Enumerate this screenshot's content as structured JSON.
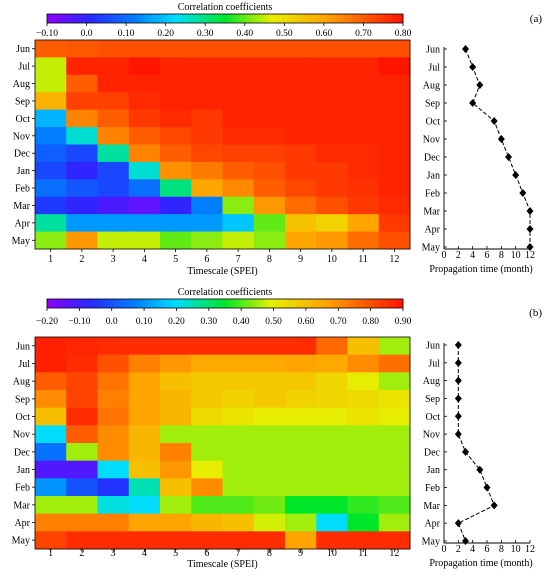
{
  "chart_data": [
    {
      "type": "heatmap",
      "panel_label": "(a)",
      "colorbar": {
        "title": "Correlation coefficients",
        "ticks": [
          "−0.10",
          "0.0",
          "0.10",
          "0.20",
          "0.30",
          "0.40",
          "0.50",
          "0.60",
          "0.70",
          "0.80"
        ],
        "min": -0.1,
        "max": 0.8
      },
      "rows": [
        "Jun",
        "Jul",
        "Aug",
        "Sep",
        "Oct",
        "Nov",
        "Dec",
        "Jan",
        "Feb",
        "Mar",
        "Apr",
        "May"
      ],
      "columns": [
        "1",
        "2",
        "3",
        "4",
        "5",
        "6",
        "7",
        "8",
        "9",
        "10",
        "11",
        "12"
      ],
      "xlabel": "Timescale (SPEI)",
      "values": [
        [
          0.7,
          0.71,
          0.72,
          0.72,
          0.72,
          0.72,
          0.72,
          0.72,
          0.72,
          0.72,
          0.72,
          0.72
        ],
        [
          0.45,
          0.78,
          0.78,
          0.8,
          0.78,
          0.78,
          0.78,
          0.78,
          0.78,
          0.78,
          0.78,
          0.8
        ],
        [
          0.45,
          0.7,
          0.78,
          0.78,
          0.78,
          0.78,
          0.78,
          0.78,
          0.78,
          0.78,
          0.78,
          0.78
        ],
        [
          0.58,
          0.74,
          0.74,
          0.77,
          0.78,
          0.78,
          0.78,
          0.78,
          0.78,
          0.78,
          0.78,
          0.78
        ],
        [
          0.18,
          0.65,
          0.7,
          0.75,
          0.77,
          0.75,
          0.78,
          0.78,
          0.78,
          0.78,
          0.78,
          0.78
        ],
        [
          0.12,
          0.25,
          0.65,
          0.7,
          0.73,
          0.75,
          0.77,
          0.77,
          0.78,
          0.78,
          0.78,
          0.78
        ],
        [
          0.08,
          0.05,
          0.28,
          0.65,
          0.7,
          0.73,
          0.74,
          0.74,
          0.75,
          0.77,
          0.77,
          0.78
        ],
        [
          0.05,
          0.0,
          0.05,
          0.25,
          0.63,
          0.66,
          0.7,
          0.72,
          0.75,
          0.75,
          0.77,
          0.78
        ],
        [
          0.1,
          0.07,
          0.05,
          0.1,
          0.3,
          0.6,
          0.64,
          0.7,
          0.73,
          0.75,
          0.76,
          0.78
        ],
        [
          0.03,
          0.0,
          -0.03,
          -0.05,
          0.0,
          0.12,
          0.42,
          0.62,
          0.68,
          0.72,
          0.75,
          0.77
        ],
        [
          0.28,
          0.15,
          0.15,
          0.15,
          0.15,
          0.15,
          0.2,
          0.4,
          0.55,
          0.52,
          0.6,
          0.75
        ],
        [
          0.42,
          0.62,
          0.45,
          0.45,
          0.4,
          0.42,
          0.45,
          0.42,
          0.6,
          0.62,
          0.68,
          0.72
        ]
      ],
      "propagation": {
        "xlabel": "Propagation time (month)",
        "xticks": [
          0,
          2,
          4,
          6,
          8,
          10,
          12
        ],
        "xlim": [
          0,
          12
        ],
        "months": [
          "Jun",
          "Jul",
          "Aug",
          "Sep",
          "Oct",
          "Nov",
          "Dec",
          "Jan",
          "Feb",
          "Mar",
          "Apr",
          "May"
        ],
        "values": [
          3,
          4,
          5,
          4,
          7,
          8,
          9,
          10,
          11,
          12,
          12,
          12
        ]
      }
    },
    {
      "type": "heatmap",
      "panel_label": "(b)",
      "colorbar": {
        "title": "Correlation coefficients",
        "ticks": [
          "−0.20",
          "−0.10",
          "0.0",
          "0.10",
          "0.20",
          "0.30",
          "0.40",
          "0.50",
          "0.60",
          "0.70",
          "0.80",
          "0.90"
        ],
        "min": -0.2,
        "max": 0.9
      },
      "rows": [
        "Jun",
        "Jul",
        "Aug",
        "Sep",
        "Oct",
        "Nov",
        "Dec",
        "Jan",
        "Feb",
        "Mar",
        "Apr",
        "May"
      ],
      "columns": [
        "1",
        "2",
        "3",
        "4",
        "5",
        "6",
        "7",
        "8",
        "9",
        "10",
        "11",
        "12"
      ],
      "xlabel": "Timescale (SPEI)",
      "values": [
        [
          0.88,
          0.87,
          0.86,
          0.86,
          0.86,
          0.86,
          0.86,
          0.86,
          0.86,
          0.76,
          0.6,
          0.45
        ],
        [
          0.88,
          0.86,
          0.8,
          0.72,
          0.68,
          0.65,
          0.65,
          0.65,
          0.66,
          0.65,
          0.7,
          0.75
        ],
        [
          0.78,
          0.82,
          0.74,
          0.66,
          0.6,
          0.58,
          0.58,
          0.58,
          0.58,
          0.55,
          0.5,
          0.45
        ],
        [
          0.7,
          0.82,
          0.72,
          0.66,
          0.62,
          0.58,
          0.56,
          0.58,
          0.56,
          0.55,
          0.54,
          0.52
        ],
        [
          0.6,
          0.86,
          0.74,
          0.66,
          0.62,
          0.54,
          0.52,
          0.5,
          0.5,
          0.5,
          0.52,
          0.5
        ],
        [
          0.2,
          0.78,
          0.7,
          0.62,
          0.45,
          0.45,
          0.45,
          0.45,
          0.45,
          0.45,
          0.45,
          0.45
        ],
        [
          0.05,
          0.45,
          0.7,
          0.62,
          0.72,
          0.45,
          0.45,
          0.45,
          0.45,
          0.45,
          0.45,
          0.45
        ],
        [
          -0.12,
          -0.12,
          0.2,
          0.6,
          0.68,
          0.5,
          0.45,
          0.45,
          0.45,
          0.45,
          0.45,
          0.45
        ],
        [
          0.1,
          0.0,
          -0.05,
          0.25,
          0.6,
          0.7,
          0.45,
          0.45,
          0.45,
          0.45,
          0.45,
          0.45
        ],
        [
          0.45,
          0.45,
          0.22,
          0.2,
          0.45,
          0.4,
          0.4,
          0.42,
          0.35,
          0.35,
          0.38,
          0.4
        ],
        [
          0.72,
          0.72,
          0.72,
          0.66,
          0.66,
          0.62,
          0.6,
          0.48,
          0.45,
          0.2,
          0.35,
          0.45
        ],
        [
          0.82,
          0.86,
          0.86,
          0.86,
          0.86,
          0.86,
          0.86,
          0.86,
          0.66,
          0.86,
          0.86,
          0.86
        ]
      ],
      "propagation": {
        "xlabel": "Propagation time (month)",
        "xticks": [
          0,
          2,
          4,
          6,
          8,
          10,
          12
        ],
        "xlim": [
          0,
          12
        ],
        "months": [
          "Jun",
          "Jul",
          "Aug",
          "Sep",
          "Oct",
          "Nov",
          "Dec",
          "Jan",
          "Feb",
          "Mar",
          "Apr",
          "May"
        ],
        "values": [
          2,
          2,
          2,
          2,
          2,
          2,
          3,
          5,
          6,
          7,
          2,
          3
        ]
      }
    }
  ]
}
